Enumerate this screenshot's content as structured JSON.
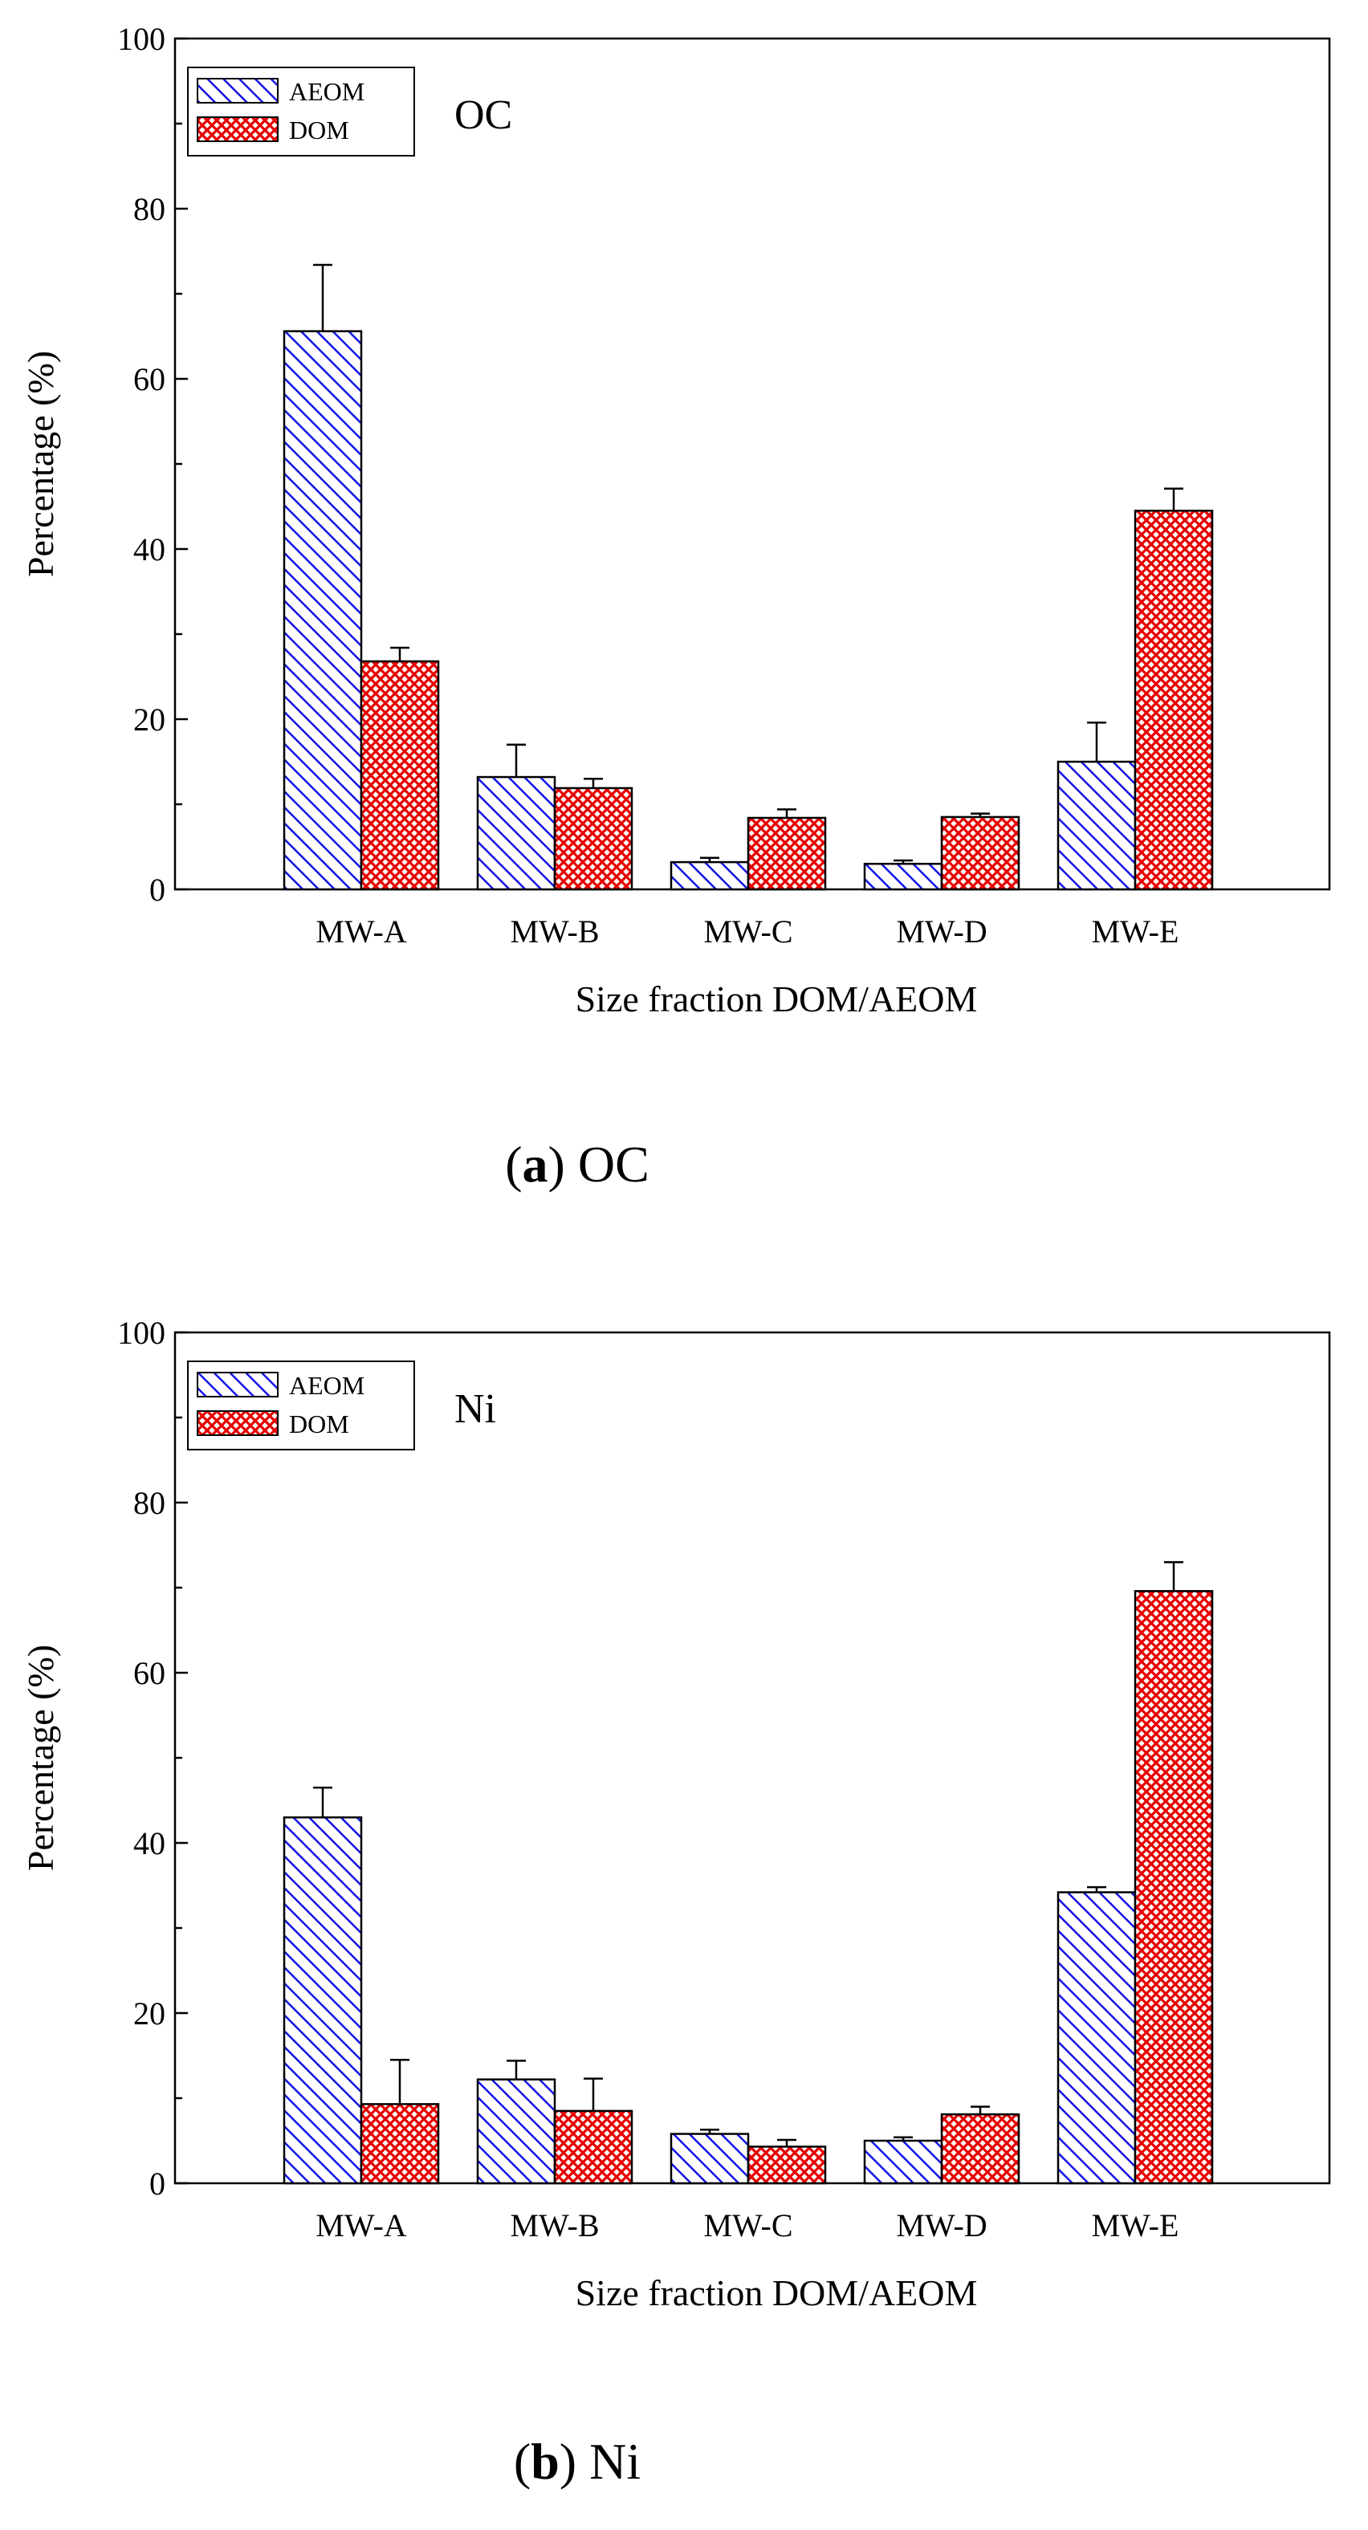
{
  "chart_data": [
    {
      "type": "bar",
      "panel_letter": "a",
      "caption": "OC",
      "title": "OC",
      "xlabel": "Size fraction DOM/AEOM",
      "ylabel": "Percentage (%)",
      "ylim": [
        0,
        100
      ],
      "yticks": [
        0,
        20,
        40,
        60,
        80,
        100
      ],
      "categories": [
        "MW-A",
        "MW-B",
        "MW-C",
        "MW-D",
        "MW-E"
      ],
      "legend_position": "top-left",
      "grid": false,
      "series": [
        {
          "name": "AEOM",
          "color": "#1414e6",
          "pattern": "diagonal-hatch",
          "values": [
            65.6,
            13.2,
            3.2,
            3.0,
            15.0
          ],
          "errors": [
            7.8,
            3.8,
            0.5,
            0.4,
            4.6
          ]
        },
        {
          "name": "DOM",
          "color": "#e60000",
          "pattern": "cross-hatch",
          "values": [
            26.8,
            11.9,
            8.4,
            8.5,
            44.5
          ],
          "errors": [
            1.6,
            1.1,
            1.0,
            0.4,
            2.6
          ]
        }
      ]
    },
    {
      "type": "bar",
      "panel_letter": "b",
      "caption": "Ni",
      "title": "Ni",
      "xlabel": "Size fraction DOM/AEOM",
      "ylabel": "Percentage (%)",
      "ylim": [
        0,
        100
      ],
      "yticks": [
        0,
        20,
        40,
        60,
        80,
        100
      ],
      "categories": [
        "MW-A",
        "MW-B",
        "MW-C",
        "MW-D",
        "MW-E"
      ],
      "legend_position": "top-left",
      "grid": false,
      "series": [
        {
          "name": "AEOM",
          "color": "#1414e6",
          "pattern": "diagonal-hatch",
          "values": [
            43.0,
            12.2,
            5.8,
            5.0,
            34.2
          ],
          "errors": [
            3.5,
            2.2,
            0.5,
            0.4,
            0.6
          ]
        },
        {
          "name": "DOM",
          "color": "#e60000",
          "pattern": "cross-hatch",
          "values": [
            9.3,
            8.5,
            4.3,
            8.1,
            69.6
          ],
          "errors": [
            5.2,
            3.8,
            0.8,
            0.9,
            3.4
          ]
        }
      ]
    }
  ]
}
